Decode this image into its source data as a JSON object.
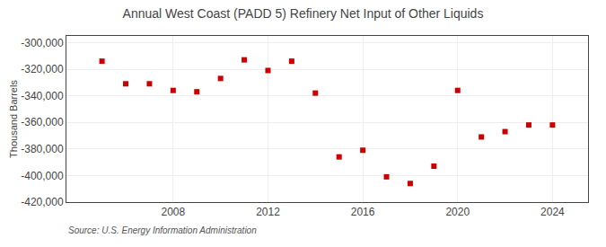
{
  "chart_data": {
    "type": "scatter",
    "title": "Annual West Coast (PADD 5) Refinery Net Input of Other Liquids",
    "ylabel": "Thousand Barrels",
    "annotations": [
      {
        "text": "Source: U.S. Energy Information Administration"
      }
    ],
    "x": [
      2005,
      2006,
      2007,
      2008,
      2009,
      2010,
      2011,
      2012,
      2013,
      2014,
      2015,
      2016,
      2017,
      2018,
      2019,
      2020,
      2021,
      2022,
      2023,
      2024
    ],
    "values": [
      -314000,
      -331000,
      -331000,
      -336000,
      -337000,
      -327000,
      -313000,
      -321000,
      -314000,
      -338000,
      -386000,
      -381000,
      -401000,
      -406000,
      -393000,
      -336000,
      -371000,
      -367000,
      -362000,
      -362000
    ],
    "color": "#cc0000",
    "marker": "square",
    "xlim": [
      2003.5,
      2025.5
    ],
    "xticks": [
      2008,
      2012,
      2016,
      2020,
      2024
    ],
    "ylim": [
      -420000,
      -295000
    ],
    "yticks": [
      {
        "value": -420000,
        "label": "-420,000"
      },
      {
        "value": -400000,
        "label": "-400,000"
      },
      {
        "value": -380000,
        "label": "-380,000"
      },
      {
        "value": -360000,
        "label": "-360,000"
      },
      {
        "value": -340000,
        "label": "-340,000"
      },
      {
        "value": -320000,
        "label": "-320,000"
      },
      {
        "value": -300000,
        "label": "-300,000"
      }
    ],
    "grid": true
  }
}
